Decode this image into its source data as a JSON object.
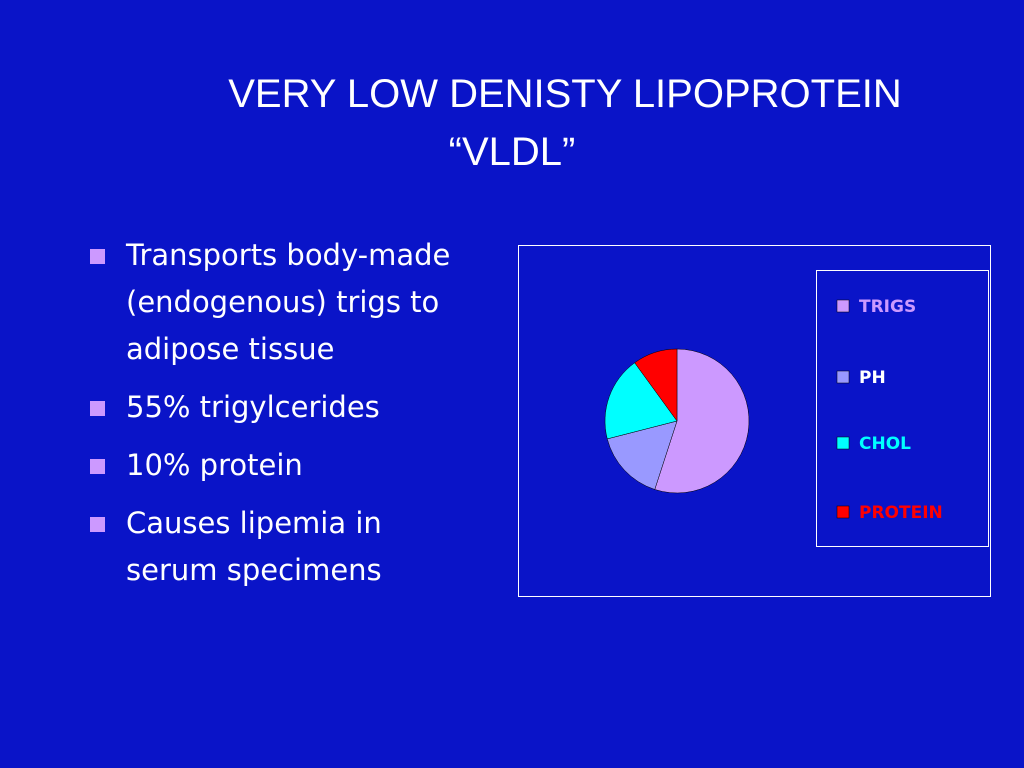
{
  "slide": {
    "title": [
      "VERY LOW DENISTY LIPOPROTEIN",
      "“VLDL”"
    ],
    "bullets": [
      "Transports body-made (endogenous) trigs to adipose tissue",
      "55% trigylcerides",
      "10% protein",
      "Causes lipemia in serum specimens"
    ]
  },
  "chart_data": {
    "type": "pie",
    "categories": [
      "TRIGS",
      "PH",
      "CHOL",
      "PROTEIN"
    ],
    "values": [
      55,
      16,
      19,
      10
    ],
    "colors": [
      "#cc99ff",
      "#9999ff",
      "#00ffff",
      "#ff0000"
    ],
    "legend": "right"
  }
}
